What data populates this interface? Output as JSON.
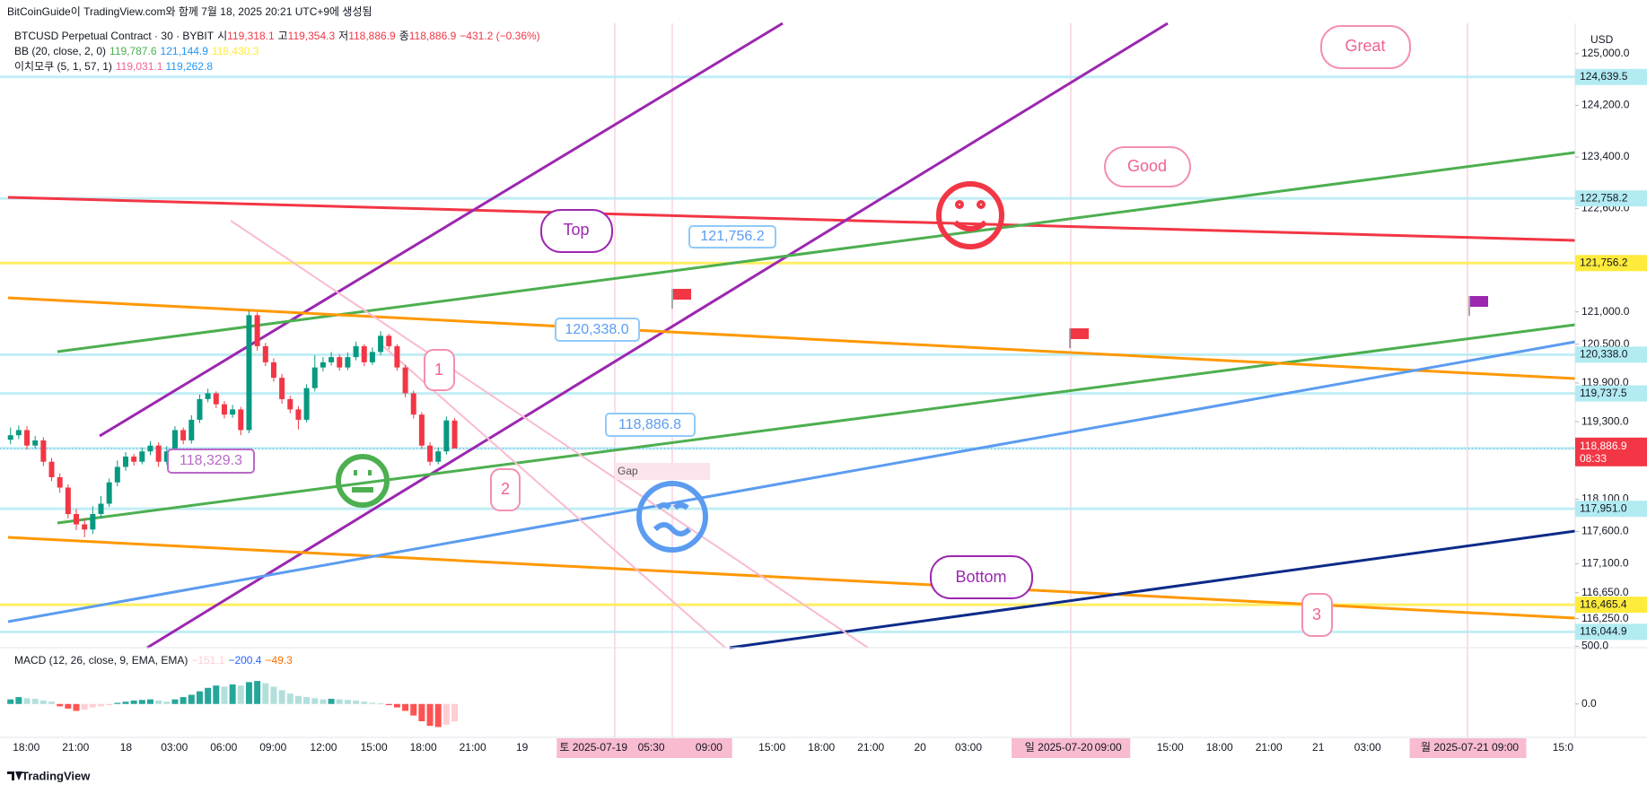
{
  "header": {
    "credit": "BitCoinGuide이 TradingView.com와 함께 7월 18, 2025 20:21 UTC+9에 생성됨",
    "symbol": "BTCUSD Perpetual Contract · 30 · BYBIT",
    "ohlc": [
      {
        "k": "시",
        "v": "119,318.1"
      },
      {
        "k": "고",
        "v": "119,354.3"
      },
      {
        "k": "저",
        "v": "118,886.9"
      },
      {
        "k": "종",
        "v": "118,886.9"
      }
    ],
    "change": "−431.2 (−0.36%)",
    "bb": {
      "name": "BB (20, close, 2, 0)",
      "values": [
        "119,787.6",
        "121,144.9",
        "118,430.3"
      ],
      "colors": [
        "#4caf50",
        "#2196f3",
        "#ffeb3b"
      ]
    },
    "ichimoku": {
      "name": "이치모쿠 (5, 1, 57, 1)",
      "values": [
        "119,031.1",
        "119,262.8"
      ],
      "colors": [
        "#f06292",
        "#2196f3"
      ]
    }
  },
  "chart_data": {
    "type": "candlestick",
    "currency": "USD",
    "ylim": [
      115800,
      125470
    ],
    "yticks": [
      {
        "value": 125000,
        "label": "125,000.0"
      },
      {
        "value": 124200,
        "label": "124,200.0"
      },
      {
        "value": 123400,
        "label": "123,400.0"
      },
      {
        "value": 122600,
        "label": "122,600.0"
      },
      {
        "value": 121000,
        "label": "121,000.0"
      },
      {
        "value": 120500,
        "label": "120,500.0"
      },
      {
        "value": 119900,
        "label": "119,900.0"
      },
      {
        "value": 119300,
        "label": "119,300.0"
      },
      {
        "value": 118100,
        "label": "118,100.0"
      },
      {
        "value": 117600,
        "label": "117,600.0"
      },
      {
        "value": 117100,
        "label": "117,100.0"
      },
      {
        "value": 116650,
        "label": "116,650.0"
      },
      {
        "value": 116250,
        "label": "116,250.0"
      }
    ],
    "up_color": "#089981",
    "down_color": "#f23645",
    "candles": {
      "open": [
        119020,
        119090,
        119170,
        118930,
        119010,
        118680,
        118440,
        118280,
        117870,
        117710,
        117630,
        117870,
        118030,
        118360,
        118600,
        118760,
        118680,
        118840,
        118930,
        118680,
        118840,
        119170,
        119010,
        119330,
        119650,
        119740,
        119570,
        119410,
        119490,
        119170,
        120950,
        120470,
        120220,
        119980,
        119650,
        119490,
        119330,
        119820,
        120140,
        120220,
        120300,
        120140,
        120300,
        120470,
        120220,
        120380,
        120630,
        120470,
        120140,
        119740,
        119410,
        118930,
        118680,
        118840,
        119318.1
      ],
      "high": [
        119210,
        119240,
        119230,
        119080,
        119060,
        118740,
        118500,
        118330,
        117950,
        117800,
        117990,
        118150,
        118420,
        118700,
        118830,
        118800,
        118900,
        119000,
        118980,
        118920,
        119230,
        119210,
        119400,
        119720,
        119810,
        119770,
        119620,
        119560,
        119530,
        121020,
        120990,
        120520,
        120280,
        120040,
        119700,
        119540,
        119880,
        120330,
        120300,
        120380,
        120340,
        120370,
        120540,
        120500,
        120450,
        120700,
        120660,
        120500,
        120180,
        119780,
        119450,
        118980,
        118900,
        119380,
        119354.3
      ],
      "low": [
        118950,
        119030,
        118870,
        118880,
        118610,
        118380,
        118200,
        117800,
        117620,
        117510,
        117560,
        117800,
        117980,
        118300,
        118540,
        118620,
        118640,
        118780,
        118600,
        118630,
        118790,
        118950,
        118960,
        119280,
        119600,
        119510,
        119350,
        119360,
        119090,
        119120,
        120400,
        120160,
        119920,
        119580,
        119430,
        119180,
        119290,
        119770,
        120080,
        120170,
        120090,
        120100,
        120250,
        120160,
        120180,
        120330,
        120420,
        120090,
        119680,
        119350,
        118880,
        118620,
        118640,
        118790,
        118886.9
      ],
      "close": [
        119090,
        119170,
        118930,
        119010,
        118680,
        118440,
        118280,
        117870,
        117710,
        117630,
        117870,
        118030,
        118360,
        118600,
        118760,
        118680,
        118840,
        118930,
        118680,
        118840,
        119170,
        119010,
        119330,
        119650,
        119740,
        119570,
        119410,
        119490,
        119170,
        120950,
        120470,
        120220,
        119980,
        119650,
        119490,
        119330,
        119820,
        120140,
        120220,
        120300,
        120140,
        120300,
        120470,
        120220,
        120380,
        120630,
        120470,
        120140,
        119740,
        119410,
        118930,
        118680,
        118840,
        119320,
        118886.9
      ]
    },
    "current": {
      "value": 118886.9,
      "label": "118,886.9",
      "countdown": "08:33",
      "color": "#f23645"
    },
    "levels": [
      {
        "value": 124639.5,
        "label": "124,639.5",
        "color": "#b2ebf2"
      },
      {
        "value": 122758.2,
        "label": "122,758.2",
        "color": "#b2ebf2"
      },
      {
        "value": 121756.2,
        "label": "121,756.2",
        "color": "#ffeb3b"
      },
      {
        "value": 120338.0,
        "label": "120,338.0",
        "color": "#b2ebf2"
      },
      {
        "value": 119737.5,
        "label": "119,737.5",
        "color": "#b2ebf2"
      },
      {
        "value": 118886.8,
        "label": "118,886.8",
        "color": "#b2ebf2"
      },
      {
        "value": 117951.0,
        "label": "117,951.0",
        "color": "#b2ebf2"
      },
      {
        "value": 116465.4,
        "label": "116,465.4",
        "color": "#ffeb3b"
      },
      {
        "value": 116044.9,
        "label": "116,044.9",
        "color": "#b2ebf2"
      }
    ],
    "x_labels": [
      "18:00",
      "21:00",
      "18",
      "03:00",
      "06:00",
      "09:00",
      "12:00",
      "15:00",
      "18:00",
      "21:00",
      "19",
      "05:30",
      "09:00",
      "15:00",
      "18:00",
      "21:00",
      "20",
      "03:00",
      "09:00",
      "15:00",
      "18:00",
      "21:00",
      "21",
      "03:00",
      "09:00",
      "15:0"
    ],
    "date_markers": [
      "토 2025-07-19",
      "일 2025-07-20",
      "월 2025-07-21"
    ],
    "macd": {
      "title": "MACD (12, 26, close, 9, EMA, EMA)",
      "values": [
        "−151.1",
        "−200.4",
        "−49.3"
      ],
      "colors": [
        "#ffcdd2",
        "#2962ff",
        "#ff6d00"
      ],
      "ylim": [
        -290,
        520
      ],
      "yticks": [
        {
          "value": 500,
          "label": "500.0"
        },
        {
          "value": 0,
          "label": "0.0"
        }
      ],
      "histogram": [
        40,
        60,
        50,
        45,
        30,
        20,
        -20,
        -40,
        -60,
        -50,
        -30,
        -20,
        -10,
        10,
        20,
        30,
        35,
        40,
        30,
        20,
        40,
        60,
        80,
        110,
        140,
        160,
        150,
        170,
        160,
        190,
        200,
        180,
        150,
        120,
        90,
        70,
        60,
        50,
        40,
        45,
        40,
        35,
        30,
        20,
        10,
        5,
        -10,
        -30,
        -60,
        -100,
        -150,
        -190,
        -200,
        -180,
        -151.1
      ]
    }
  },
  "annotations": {
    "top": "Top",
    "good": "Good",
    "great": "Great",
    "bottom": "Bottom",
    "gap": "Gap",
    "price_notes": [
      "121,756.2",
      "120,338.0",
      "118,886.8",
      "118,329.3"
    ],
    "numbers": [
      "1",
      "2",
      "3"
    ]
  },
  "footer": "TradingView"
}
